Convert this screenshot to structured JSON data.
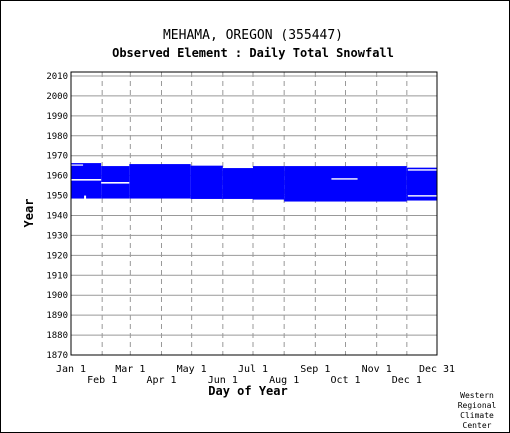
{
  "chart_data": {
    "type": "bar",
    "title": "MEHAMA, OREGON   (355447)",
    "subtitle": "Observed Element : Daily Total Snowfall",
    "xlabel": "Day of Year",
    "ylabel": "Year",
    "ylim": [
      1870,
      2012
    ],
    "yticks": [
      1870,
      1880,
      1890,
      1900,
      1910,
      1920,
      1930,
      1940,
      1950,
      1960,
      1970,
      1980,
      1990,
      2000,
      2010
    ],
    "xlim": [
      1,
      365
    ],
    "xticks_upper": [
      {
        "label": "Jan 1",
        "day": 1
      },
      {
        "label": "Mar 1",
        "day": 60
      },
      {
        "label": "May 1",
        "day": 121
      },
      {
        "label": "Jul 1",
        "day": 182
      },
      {
        "label": "Sep 1",
        "day": 244
      },
      {
        "label": "Nov 1",
        "day": 305
      },
      {
        "label": "Dec 31",
        "day": 365
      }
    ],
    "xticks_lower": [
      {
        "label": "Feb 1",
        "day": 32
      },
      {
        "label": "Apr 1",
        "day": 91
      },
      {
        "label": "Jun 1",
        "day": 152
      },
      {
        "label": "Aug 1",
        "day": 213
      },
      {
        "label": "Oct 1",
        "day": 274
      },
      {
        "label": "Dec 1",
        "day": 335
      }
    ],
    "grid": true,
    "color": "#0000ff",
    "series": [
      {
        "start_day": 1,
        "end_day": 31,
        "year_start": 1948.5,
        "year_end": 1966.3
      },
      {
        "start_day": 31,
        "end_day": 59,
        "year_start": 1948.5,
        "year_end": 1964.8
      },
      {
        "start_day": 59,
        "end_day": 120,
        "year_start": 1948.5,
        "year_end": 1965.8
      },
      {
        "start_day": 120,
        "end_day": 152,
        "year_start": 1948.3,
        "year_end": 1965.0
      },
      {
        "start_day": 152,
        "end_day": 182,
        "year_start": 1948.3,
        "year_end": 1963.8
      },
      {
        "start_day": 182,
        "end_day": 213,
        "year_start": 1948.0,
        "year_end": 1964.8
      },
      {
        "start_day": 213,
        "end_day": 335,
        "year_start": 1947.0,
        "year_end": 1964.8
      },
      {
        "start_day": 335,
        "end_day": 365,
        "year_start": 1947.5,
        "year_end": 1964.0
      }
    ],
    "gaps": [
      {
        "start_day": 1,
        "end_day": 31,
        "year_start": 1957.5,
        "year_end": 1958.3
      },
      {
        "start_day": 1,
        "end_day": 13,
        "year_start": 1965.0,
        "year_end": 1965.6
      },
      {
        "start_day": 31,
        "end_day": 59,
        "year_start": 1956.0,
        "year_end": 1956.8
      },
      {
        "start_day": 14,
        "end_day": 16,
        "year_start": 1948.3,
        "year_end": 1950.0
      },
      {
        "start_day": 260,
        "end_day": 286,
        "year_start": 1958.0,
        "year_end": 1958.7
      },
      {
        "start_day": 336,
        "end_day": 365,
        "year_start": 1949.5,
        "year_end": 1950.2
      },
      {
        "start_day": 336,
        "end_day": 365,
        "year_start": 1962.5,
        "year_end": 1963.2
      }
    ]
  },
  "credit": [
    "Western",
    "Regional",
    "Climate",
    "Center"
  ]
}
